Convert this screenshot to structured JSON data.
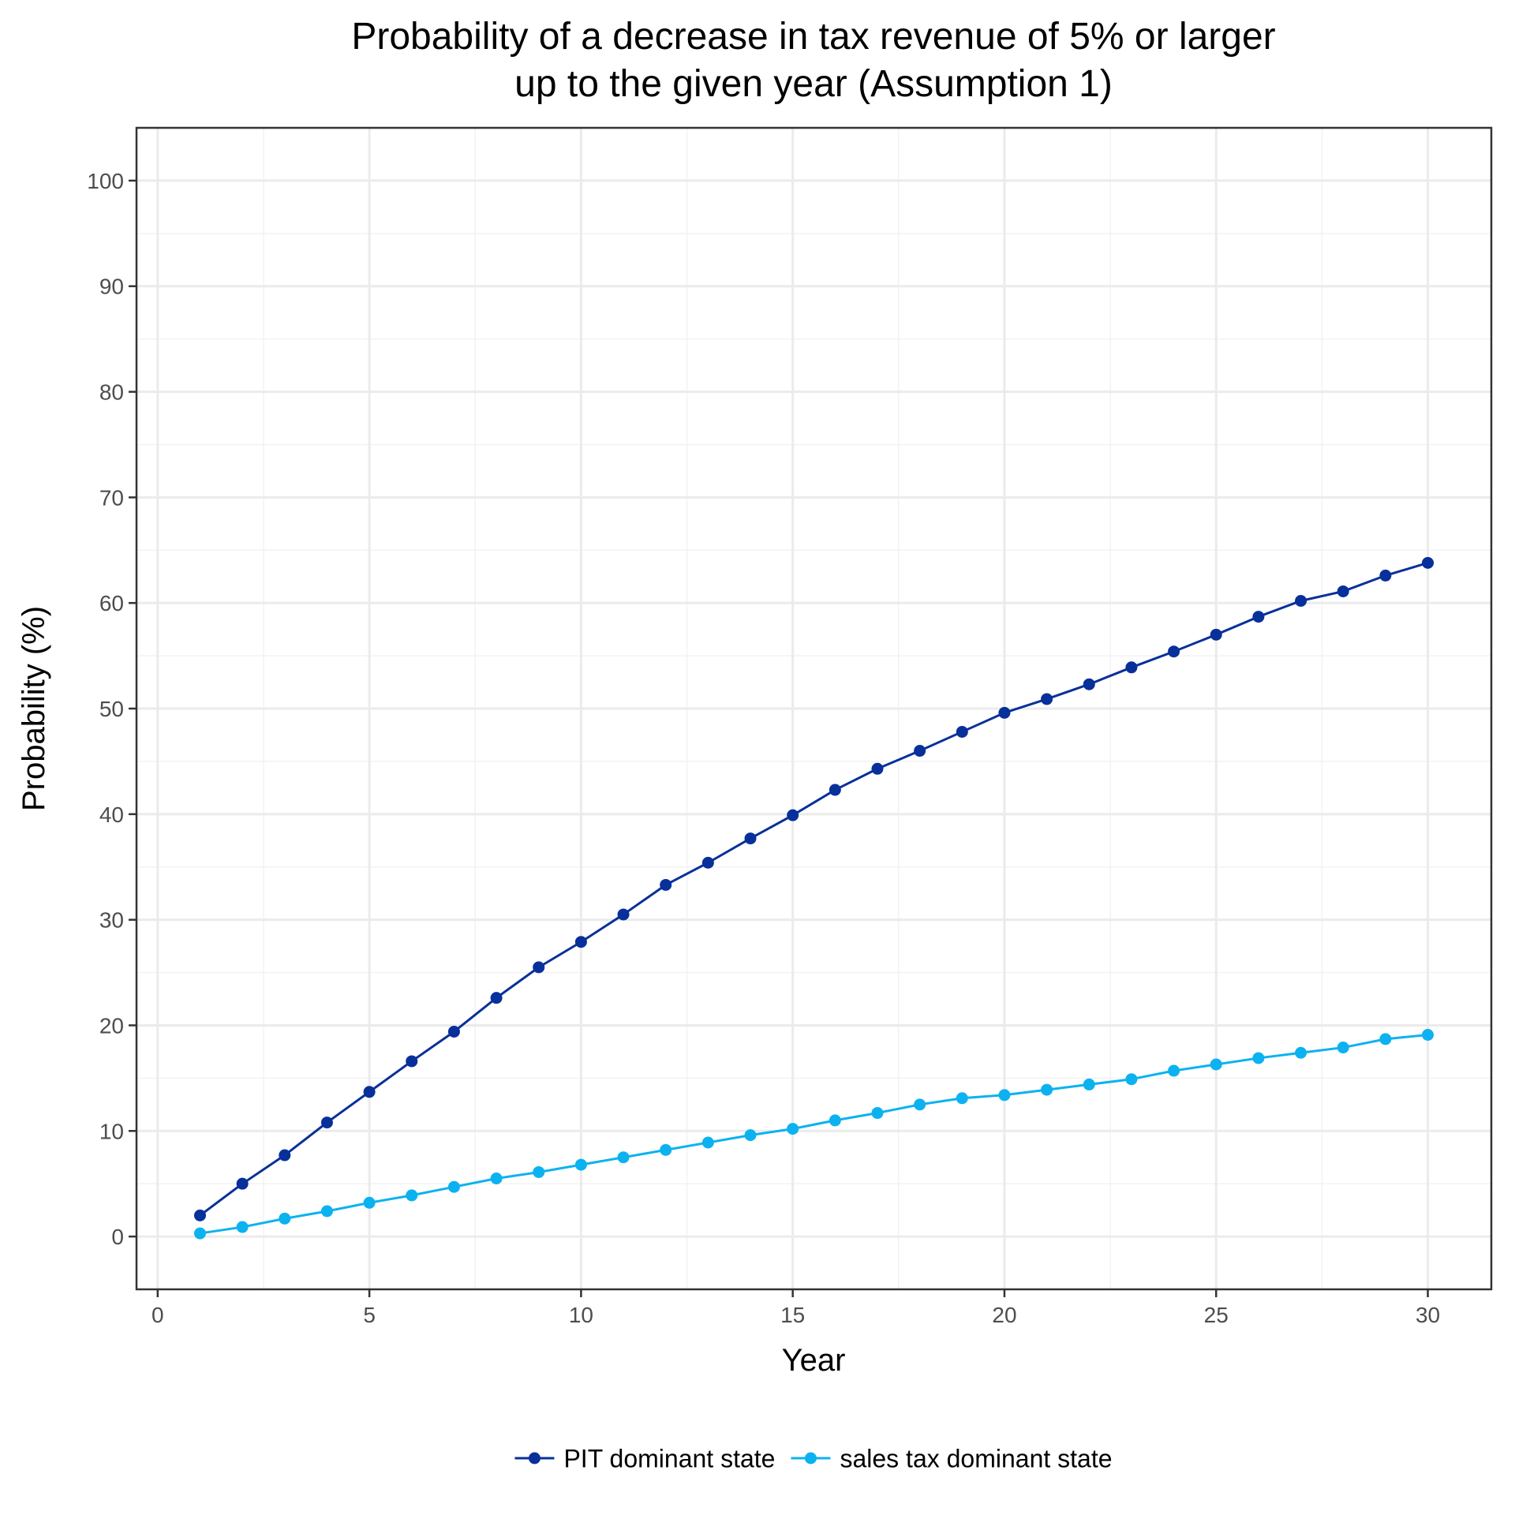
{
  "chart_data": {
    "type": "line",
    "title_lines": [
      "Probability of a decrease in tax revenue of 5% or larger",
      "up to the given year (Assumption 1)"
    ],
    "xlabel": "Year",
    "ylabel": "Probability (%)",
    "xlim": [
      -0.5,
      31.5
    ],
    "ylim": [
      -5,
      105
    ],
    "x_ticks": [
      0,
      5,
      10,
      15,
      20,
      25,
      30
    ],
    "y_ticks": [
      0,
      10,
      20,
      30,
      40,
      50,
      60,
      70,
      80,
      90,
      100
    ],
    "grid": true,
    "legend_position": "bottom",
    "x": [
      1,
      2,
      3,
      4,
      5,
      6,
      7,
      8,
      9,
      10,
      11,
      12,
      13,
      14,
      15,
      16,
      17,
      18,
      19,
      20,
      21,
      22,
      23,
      24,
      25,
      26,
      27,
      28,
      29,
      30
    ],
    "series": [
      {
        "name": "PIT dominant state",
        "color": "#08309a",
        "values": [
          2.0,
          5.0,
          7.7,
          10.8,
          13.7,
          16.6,
          19.4,
          22.6,
          25.5,
          27.9,
          30.5,
          33.3,
          35.4,
          37.7,
          39.9,
          42.3,
          44.3,
          46.0,
          47.8,
          49.6,
          50.9,
          52.3,
          53.9,
          55.4,
          57.0,
          58.7,
          60.2,
          61.1,
          62.6,
          63.8
        ]
      },
      {
        "name": "sales tax dominant state",
        "color": "#0cb2f0",
        "values": [
          0.3,
          0.9,
          1.7,
          2.4,
          3.2,
          3.9,
          4.7,
          5.5,
          6.1,
          6.8,
          7.5,
          8.2,
          8.9,
          9.6,
          10.2,
          11.0,
          11.7,
          12.5,
          13.1,
          13.4,
          13.9,
          14.4,
          14.9,
          15.7,
          16.3,
          16.9,
          17.4,
          17.9,
          18.7,
          19.1
        ]
      }
    ]
  }
}
